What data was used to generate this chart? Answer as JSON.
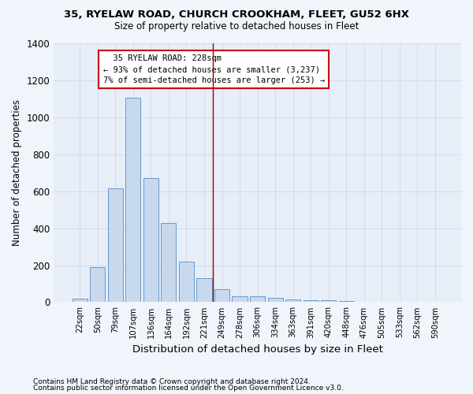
{
  "title1": "35, RYELAW ROAD, CHURCH CROOKHAM, FLEET, GU52 6HX",
  "title2": "Size of property relative to detached houses in Fleet",
  "xlabel": "Distribution of detached houses by size in Fleet",
  "ylabel": "Number of detached properties",
  "categories": [
    "22sqm",
    "50sqm",
    "79sqm",
    "107sqm",
    "136sqm",
    "164sqm",
    "192sqm",
    "221sqm",
    "249sqm",
    "278sqm",
    "306sqm",
    "334sqm",
    "363sqm",
    "391sqm",
    "420sqm",
    "448sqm",
    "476sqm",
    "505sqm",
    "533sqm",
    "562sqm",
    "590sqm"
  ],
  "values": [
    20,
    190,
    615,
    1105,
    670,
    430,
    220,
    130,
    70,
    30,
    30,
    25,
    15,
    10,
    10,
    5,
    3,
    2,
    1,
    1,
    1
  ],
  "bar_color": "#c8d9ee",
  "bar_edge_color": "#6699cc",
  "vline_x": 7.5,
  "vline_color": "#990000",
  "bg_color": "#e8eef8",
  "grid_color": "#d0d8e8",
  "annotation_text": "  35 RYELAW ROAD: 228sqm  \n← 93% of detached houses are smaller (3,237)\n7% of semi-detached houses are larger (253) →",
  "annotation_box_facecolor": "#ffffff",
  "annotation_box_edgecolor": "#cc0000",
  "footer1": "Contains HM Land Registry data © Crown copyright and database right 2024.",
  "footer2": "Contains public sector information licensed under the Open Government Licence v3.0.",
  "ylim": [
    0,
    1400
  ],
  "yticks": [
    0,
    200,
    400,
    600,
    800,
    1000,
    1200,
    1400
  ]
}
